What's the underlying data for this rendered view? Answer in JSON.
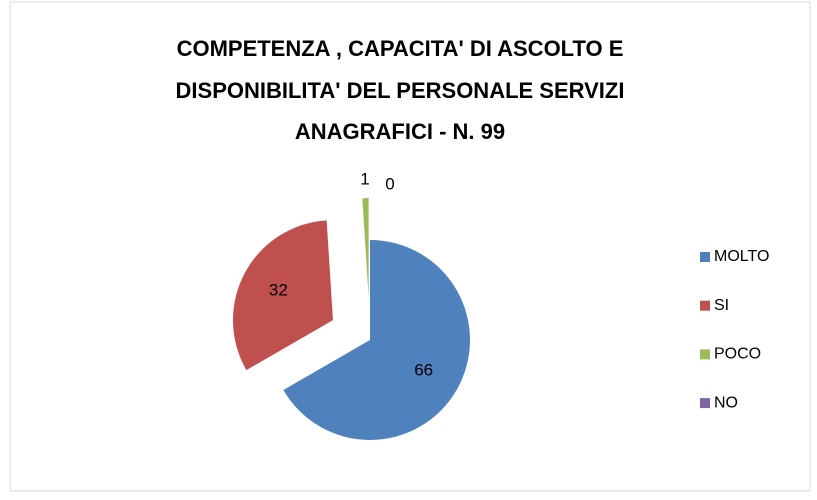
{
  "chart_data": {
    "type": "pie",
    "title": [
      "COMPETENZA , CAPACITA' DI ASCOLTO E",
      "DISPONIBILITA' DEL PERSONALE SERVIZI",
      "ANAGRAFICI -  N. 99"
    ],
    "categories": [
      "MOLTO",
      "SI",
      "POCO",
      "NO"
    ],
    "values": [
      66,
      32,
      1,
      0
    ],
    "colors": [
      "#4f81bd",
      "#c0504d",
      "#9bbb59",
      "#8064a2"
    ],
    "legend": "right"
  }
}
